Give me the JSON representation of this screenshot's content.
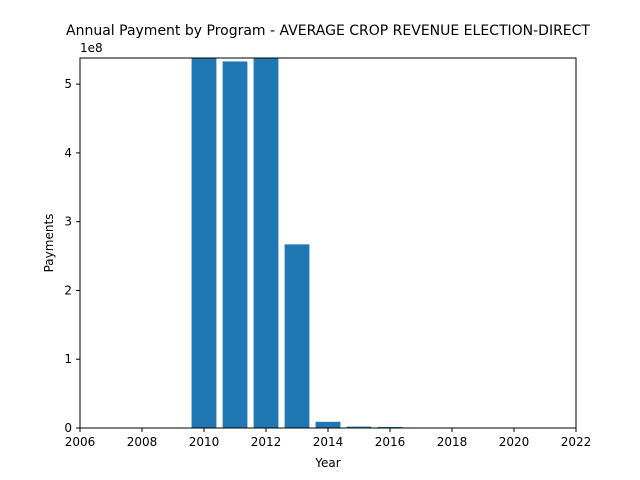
{
  "chart_data": {
    "type": "bar",
    "title": "Annual Payment by Program - AVERAGE CROP REVENUE ELECTION-DIRECT",
    "xlabel": "Year",
    "ylabel": "Payments",
    "offset_label": "1e8",
    "x": [
      2010,
      2011,
      2012,
      2013,
      2014,
      2015,
      2016
    ],
    "values": [
      538000000,
      533000000,
      538000000,
      267000000,
      9000000,
      2000000,
      1500000
    ],
    "xlim": [
      2006,
      2022
    ],
    "ylim": [
      0,
      538000000
    ],
    "xticks": [
      2006,
      2008,
      2010,
      2012,
      2014,
      2016,
      2018,
      2020,
      2022
    ],
    "xtick_labels": [
      "2006",
      "2008",
      "2010",
      "2012",
      "2014",
      "2016",
      "2018",
      "2020",
      "2022"
    ],
    "yticks": [
      0,
      100000000,
      200000000,
      300000000,
      400000000,
      500000000
    ],
    "ytick_labels": [
      "0",
      "1",
      "2",
      "3",
      "4",
      "5"
    ],
    "bar_width": 0.8,
    "grid": false,
    "colors": {
      "bar": "#1f77b4",
      "axes": "#000000"
    }
  }
}
